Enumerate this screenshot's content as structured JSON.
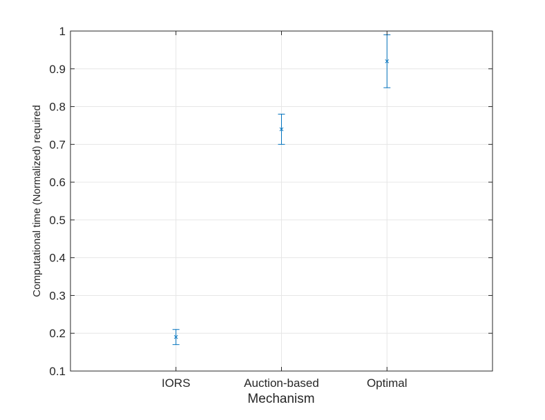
{
  "chart_data": {
    "type": "scatter",
    "title": "",
    "xlabel": "Mechanism",
    "ylabel": "Computational time (Normalized) required",
    "categories": [
      "IORS",
      "Auction-based",
      "Optimal"
    ],
    "series": [
      {
        "values": [
          0.19,
          0.74,
          0.92
        ],
        "lower": [
          0.17,
          0.7,
          0.85
        ],
        "upper": [
          0.21,
          0.78,
          0.99
        ]
      }
    ],
    "ylim": [
      0.1,
      1.0
    ],
    "yticks": [
      0.1,
      0.2,
      0.3,
      0.4,
      0.5,
      0.6,
      0.7,
      0.8,
      0.9,
      1
    ],
    "ytick_labels": [
      "0.1",
      "0.2",
      "0.3",
      "0.4",
      "0.5",
      "0.6",
      "0.7",
      "0.8",
      "0.9",
      "1"
    ],
    "grid": true,
    "marker": "x",
    "error_bars": true,
    "colors": {
      "series": "#0072bd",
      "grid": "#e6e6e6",
      "axis": "#262626"
    }
  }
}
